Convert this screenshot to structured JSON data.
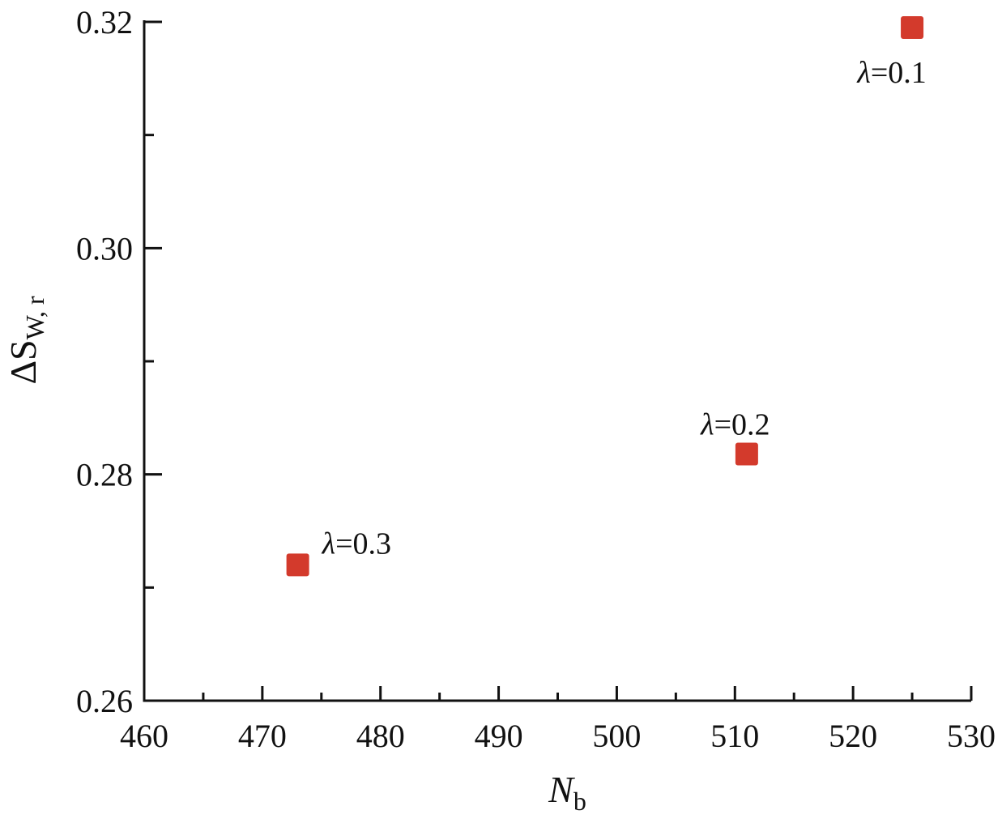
{
  "chart_data": {
    "type": "scatter",
    "title": "",
    "xlabel": {
      "main": "N",
      "sub": "b"
    },
    "ylabel": {
      "main": "ΔS",
      "sub": "W, r"
    },
    "xlim": [
      460,
      530
    ],
    "ylim": [
      0.26,
      0.32
    ],
    "x_major_ticks": [
      460,
      470,
      480,
      490,
      500,
      510,
      520,
      530
    ],
    "x_minor_ticks": [
      465,
      475,
      485,
      495,
      505,
      515,
      525
    ],
    "x_tick_labels": [
      "460",
      "470",
      "480",
      "490",
      "500",
      "510",
      "520",
      "530"
    ],
    "y_major_ticks": [
      0.26,
      0.28,
      0.3,
      0.32
    ],
    "y_minor_ticks": [
      0.27,
      0.29,
      0.31
    ],
    "y_tick_labels": [
      "0.26",
      "0.28",
      "0.30",
      "0.32"
    ],
    "grid": false,
    "marker": "square",
    "marker_color": "#d33a2c",
    "points": [
      {
        "x": 473,
        "y": 0.272,
        "label": "λ=0.3",
        "label_position": "upper-right"
      },
      {
        "x": 511,
        "y": 0.2818,
        "label": "λ=0.2",
        "label_position": "above"
      },
      {
        "x": 525,
        "y": 0.3195,
        "label": "λ=0.1",
        "label_position": "below"
      }
    ]
  }
}
